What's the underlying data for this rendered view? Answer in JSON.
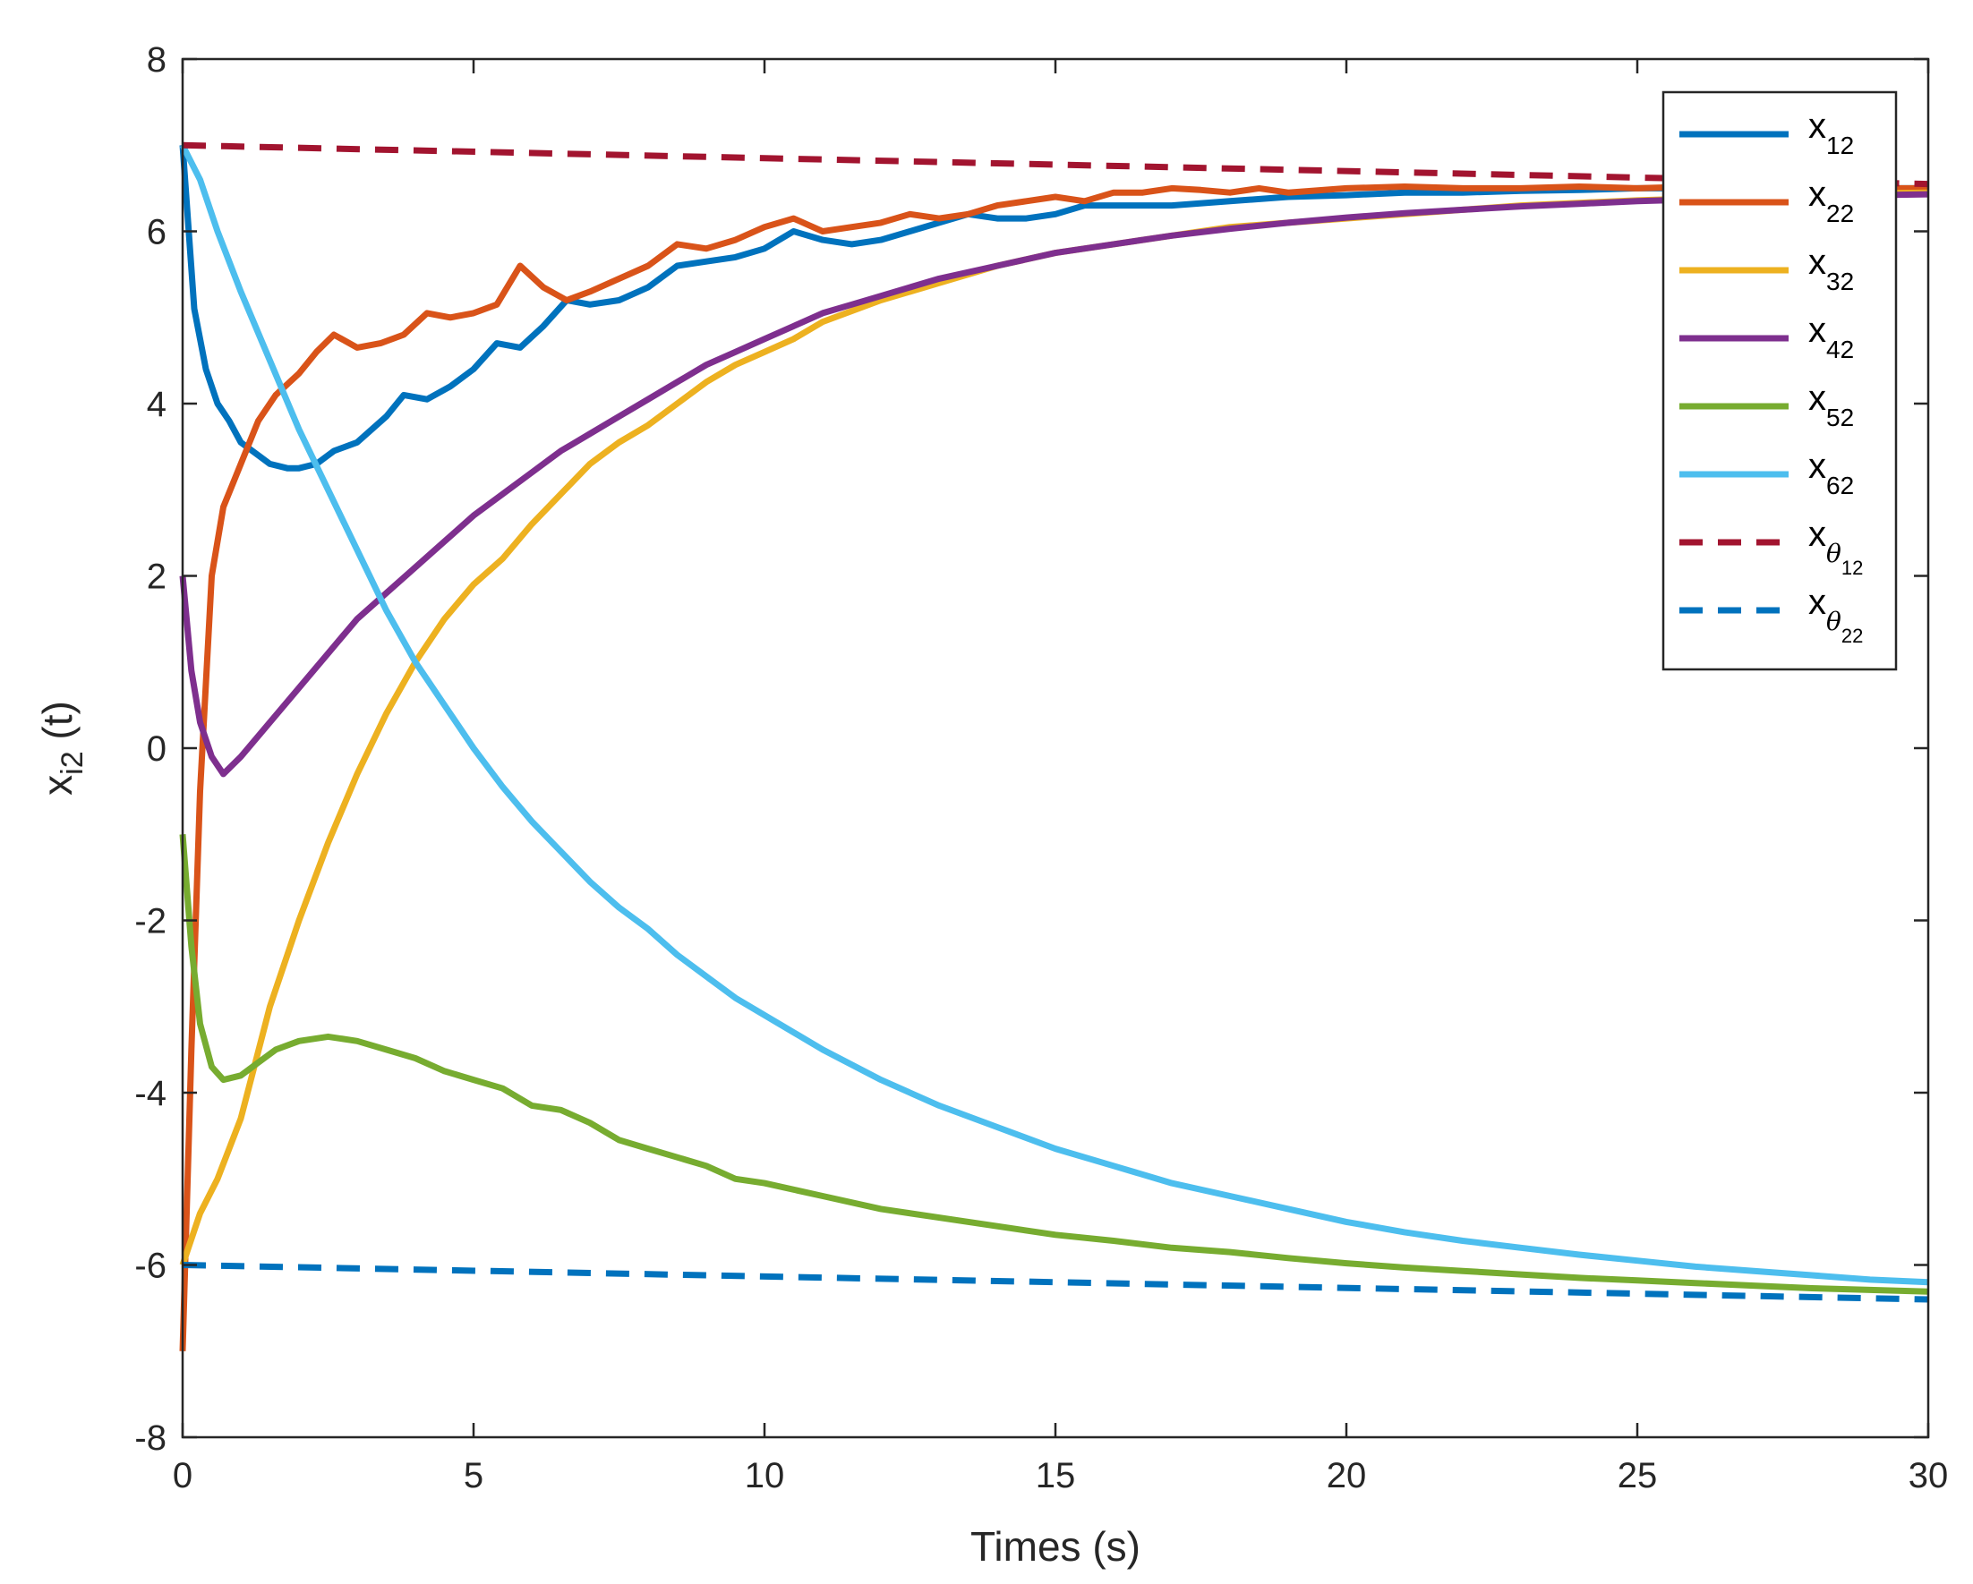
{
  "chart_data": {
    "type": "line",
    "title": "",
    "xlabel": "Times (s)",
    "ylabel": {
      "base": "x",
      "sub": "i2",
      "suffix": " (t)"
    },
    "xlim": [
      0,
      30
    ],
    "ylim": [
      -8,
      8
    ],
    "xticks": [
      0,
      5,
      10,
      15,
      20,
      25,
      30
    ],
    "yticks": [
      -8,
      -6,
      -4,
      -2,
      0,
      2,
      4,
      6,
      8
    ],
    "grid": false,
    "legend_position": "top-right",
    "series": [
      {
        "name": "x12",
        "base": "x",
        "sub": "12",
        "color": "#0072bd",
        "dash": "solid",
        "x": [
          0,
          0.2,
          0.4,
          0.6,
          0.8,
          1.0,
          1.2,
          1.5,
          1.8,
          2.0,
          2.3,
          2.6,
          3.0,
          3.5,
          3.8,
          4.2,
          4.6,
          5.0,
          5.4,
          5.8,
          6.2,
          6.6,
          7.0,
          7.5,
          8.0,
          8.5,
          9.0,
          9.5,
          10.0,
          10.5,
          11.0,
          11.5,
          12.0,
          12.5,
          13.0,
          13.5,
          14.0,
          14.5,
          15.0,
          15.5,
          16.0,
          17.0,
          18.0,
          19.0,
          20.0,
          21.0,
          22.0,
          23.0,
          24.0,
          25.0,
          26.0,
          27.0,
          28.0,
          29.0,
          30.0
        ],
        "y": [
          7.0,
          5.1,
          4.4,
          4.0,
          3.8,
          3.55,
          3.45,
          3.3,
          3.25,
          3.25,
          3.3,
          3.45,
          3.55,
          3.85,
          4.1,
          4.05,
          4.2,
          4.4,
          4.7,
          4.65,
          4.9,
          5.2,
          5.15,
          5.2,
          5.35,
          5.6,
          5.65,
          5.7,
          5.8,
          6.0,
          5.9,
          5.85,
          5.9,
          6.0,
          6.1,
          6.2,
          6.15,
          6.15,
          6.2,
          6.3,
          6.3,
          6.3,
          6.35,
          6.4,
          6.42,
          6.45,
          6.45,
          6.47,
          6.48,
          6.5,
          6.5,
          6.5,
          6.5,
          6.5,
          6.5
        ]
      },
      {
        "name": "x22",
        "base": "x",
        "sub": "22",
        "color": "#d95319",
        "dash": "solid",
        "x": [
          0,
          0.15,
          0.3,
          0.5,
          0.7,
          1.0,
          1.3,
          1.6,
          2.0,
          2.3,
          2.6,
          3.0,
          3.4,
          3.8,
          4.2,
          4.6,
          5.0,
          5.4,
          5.8,
          6.2,
          6.6,
          7.0,
          7.5,
          8.0,
          8.5,
          9.0,
          9.5,
          10.0,
          10.5,
          11.0,
          11.5,
          12.0,
          12.5,
          13.0,
          13.5,
          14.0,
          14.5,
          15.0,
          15.5,
          16.0,
          16.5,
          17.0,
          17.5,
          18.0,
          18.5,
          19.0,
          20.0,
          21.0,
          22.0,
          23.0,
          24.0,
          25.0,
          26.0,
          27.0,
          28.0,
          29.0,
          30.0
        ],
        "y": [
          -7.0,
          -3.5,
          -0.5,
          2.0,
          2.8,
          3.3,
          3.8,
          4.1,
          4.35,
          4.6,
          4.8,
          4.65,
          4.7,
          4.8,
          5.05,
          5.0,
          5.05,
          5.15,
          5.6,
          5.35,
          5.2,
          5.3,
          5.45,
          5.6,
          5.85,
          5.8,
          5.9,
          6.05,
          6.15,
          6.0,
          6.05,
          6.1,
          6.2,
          6.15,
          6.2,
          6.3,
          6.35,
          6.4,
          6.35,
          6.45,
          6.45,
          6.5,
          6.48,
          6.45,
          6.5,
          6.45,
          6.5,
          6.52,
          6.5,
          6.5,
          6.52,
          6.5,
          6.52,
          6.5,
          6.5,
          6.5,
          6.5
        ]
      },
      {
        "name": "x32",
        "base": "x",
        "sub": "32",
        "color": "#edb120",
        "dash": "solid",
        "x": [
          0,
          0.3,
          0.6,
          1.0,
          1.5,
          2.0,
          2.5,
          3.0,
          3.5,
          4.0,
          4.5,
          5.0,
          5.5,
          6.0,
          6.5,
          7.0,
          7.5,
          8.0,
          8.5,
          9.0,
          9.5,
          10.0,
          10.5,
          11.0,
          12.0,
          13.0,
          14.0,
          15.0,
          16.0,
          17.0,
          18.0,
          19.0,
          20.0,
          21.0,
          22.0,
          23.0,
          24.0,
          25.0,
          26.0,
          27.0,
          28.0,
          29.0,
          30.0
        ],
        "y": [
          -6.0,
          -5.4,
          -5.0,
          -4.3,
          -3.0,
          -2.0,
          -1.1,
          -0.3,
          0.4,
          1.0,
          1.5,
          1.9,
          2.2,
          2.6,
          2.95,
          3.3,
          3.55,
          3.75,
          4.0,
          4.25,
          4.45,
          4.6,
          4.75,
          4.95,
          5.2,
          5.4,
          5.6,
          5.75,
          5.85,
          5.95,
          6.05,
          6.1,
          6.15,
          6.2,
          6.25,
          6.3,
          6.33,
          6.36,
          6.38,
          6.4,
          6.42,
          6.44,
          6.45
        ]
      },
      {
        "name": "x42",
        "base": "x",
        "sub": "42",
        "color": "#7e2f8e",
        "dash": "solid",
        "x": [
          0,
          0.15,
          0.3,
          0.5,
          0.7,
          1.0,
          1.5,
          2.0,
          2.5,
          3.0,
          3.5,
          4.0,
          4.5,
          5.0,
          5.5,
          6.0,
          6.5,
          7.0,
          7.5,
          8.0,
          8.5,
          9.0,
          9.5,
          10.0,
          10.5,
          11.0,
          11.5,
          12.0,
          13.0,
          14.0,
          15.0,
          16.0,
          17.0,
          18.0,
          19.0,
          20.0,
          21.0,
          22.0,
          23.0,
          24.0,
          25.0,
          26.0,
          27.0,
          28.0,
          29.0,
          30.0
        ],
        "y": [
          2.0,
          0.9,
          0.3,
          -0.1,
          -0.3,
          -0.1,
          0.3,
          0.7,
          1.1,
          1.5,
          1.8,
          2.1,
          2.4,
          2.7,
          2.95,
          3.2,
          3.45,
          3.65,
          3.85,
          4.05,
          4.25,
          4.45,
          4.6,
          4.75,
          4.9,
          5.05,
          5.15,
          5.25,
          5.45,
          5.6,
          5.75,
          5.85,
          5.95,
          6.03,
          6.1,
          6.16,
          6.21,
          6.25,
          6.29,
          6.32,
          6.35,
          6.37,
          6.39,
          6.41,
          6.42,
          6.43
        ]
      },
      {
        "name": "x52",
        "base": "x",
        "sub": "52",
        "color": "#77ac30",
        "dash": "solid",
        "x": [
          0,
          0.15,
          0.3,
          0.5,
          0.7,
          1.0,
          1.3,
          1.6,
          2.0,
          2.5,
          3.0,
          3.5,
          4.0,
          4.5,
          5.0,
          5.5,
          6.0,
          6.5,
          7.0,
          7.5,
          8.0,
          8.5,
          9.0,
          9.5,
          10.0,
          11.0,
          12.0,
          13.0,
          14.0,
          15.0,
          16.0,
          17.0,
          18.0,
          19.0,
          20.0,
          21.0,
          22.0,
          23.0,
          24.0,
          25.0,
          26.0,
          27.0,
          28.0,
          29.0,
          30.0
        ],
        "y": [
          -1.0,
          -2.3,
          -3.2,
          -3.7,
          -3.85,
          -3.8,
          -3.65,
          -3.5,
          -3.4,
          -3.35,
          -3.4,
          -3.5,
          -3.6,
          -3.75,
          -3.85,
          -3.95,
          -4.15,
          -4.2,
          -4.35,
          -4.55,
          -4.65,
          -4.75,
          -4.85,
          -5.0,
          -5.05,
          -5.2,
          -5.35,
          -5.45,
          -5.55,
          -5.65,
          -5.72,
          -5.8,
          -5.85,
          -5.92,
          -5.98,
          -6.03,
          -6.07,
          -6.11,
          -6.15,
          -6.18,
          -6.21,
          -6.24,
          -6.27,
          -6.29,
          -6.31
        ]
      },
      {
        "name": "x62",
        "base": "x",
        "sub": "62",
        "color": "#4dbeee",
        "dash": "solid",
        "x": [
          0,
          0.3,
          0.6,
          1.0,
          1.5,
          2.0,
          2.5,
          3.0,
          3.5,
          4.0,
          4.5,
          5.0,
          5.5,
          6.0,
          6.5,
          7.0,
          7.5,
          8.0,
          8.5,
          9.0,
          9.5,
          10.0,
          10.5,
          11.0,
          12.0,
          13.0,
          14.0,
          15.0,
          16.0,
          17.0,
          18.0,
          19.0,
          20.0,
          21.0,
          22.0,
          23.0,
          24.0,
          25.0,
          26.0,
          27.0,
          28.0,
          29.0,
          30.0
        ],
        "y": [
          7.0,
          6.6,
          6.0,
          5.3,
          4.5,
          3.7,
          3.0,
          2.3,
          1.6,
          1.0,
          0.5,
          0.0,
          -0.45,
          -0.85,
          -1.2,
          -1.55,
          -1.85,
          -2.1,
          -2.4,
          -2.65,
          -2.9,
          -3.1,
          -3.3,
          -3.5,
          -3.85,
          -4.15,
          -4.4,
          -4.65,
          -4.85,
          -5.05,
          -5.2,
          -5.35,
          -5.5,
          -5.62,
          -5.72,
          -5.8,
          -5.88,
          -5.95,
          -6.02,
          -6.07,
          -6.12,
          -6.17,
          -6.2
        ]
      },
      {
        "name": "xθ12",
        "base": "x",
        "greek": "θ",
        "sub": "12",
        "color": "#a2142f",
        "dash": "dashed",
        "x": [
          0,
          30
        ],
        "y": [
          7.0,
          6.55
        ]
      },
      {
        "name": "xθ22",
        "base": "x",
        "greek": "θ",
        "sub": "22",
        "color": "#0072bd",
        "dash": "dashed",
        "x": [
          0,
          30
        ],
        "y": [
          -6.0,
          -6.4
        ]
      }
    ]
  }
}
